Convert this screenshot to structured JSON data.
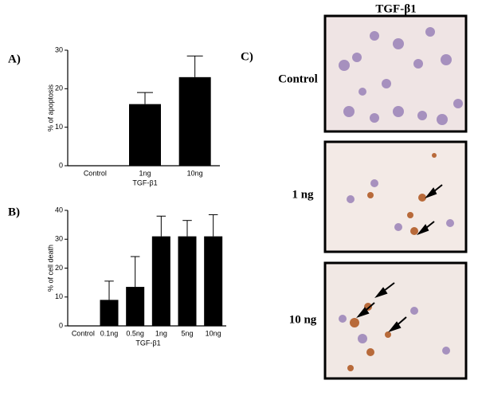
{
  "panel_labels": [
    "A)",
    "B)",
    "C)"
  ],
  "chart_data": [
    {
      "type": "bar",
      "categories": [
        "Control",
        "1ng",
        "10ng"
      ],
      "values": [
        0,
        16,
        23
      ],
      "errors": [
        null,
        3,
        5.5
      ],
      "color": "#000000",
      "ylim": [
        0,
        30
      ],
      "yticks": [
        0,
        10,
        20,
        30
      ],
      "y_label": "% of apoptosis",
      "x_label": "TGF-β1"
    },
    {
      "type": "bar",
      "categories": [
        "Control",
        "0.1ng",
        "0.5ng",
        "1ng",
        "5ng",
        "10ng"
      ],
      "values": [
        0,
        9,
        13.5,
        31,
        31,
        31
      ],
      "errors": [
        null,
        6.5,
        10.5,
        7,
        5.5,
        7.5
      ],
      "color": "#000000",
      "ylim": [
        0,
        40
      ],
      "yticks": [
        0,
        10,
        20,
        30,
        40
      ],
      "y_label": "% of cell death",
      "x_label": "TGF-β1"
    }
  ],
  "micrographs": {
    "title": "TGF-β1",
    "labels": [
      "Control",
      "1 ng",
      "10 ng"
    ]
  }
}
